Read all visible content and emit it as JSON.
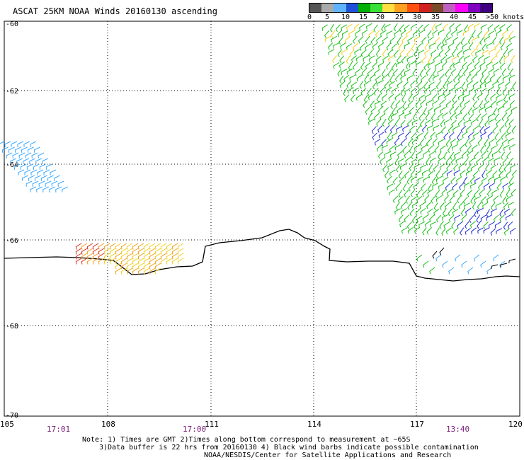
{
  "title": "ASCAT 25KM NOAA Winds 20160130 ascending",
  "colorbar": {
    "labels": [
      "0",
      "5",
      "10",
      "15",
      "20",
      "25",
      "30",
      "35",
      "40",
      "45",
      ">50 knots"
    ],
    "colors": [
      "#555555",
      "#aaaaaa",
      "#60b4ff",
      "#2050d8",
      "#00b000",
      "#38e038",
      "#ffe040",
      "#ffa020",
      "#ff5010",
      "#d02020",
      "#7a4a2a",
      "#c060c0",
      "#ff00ff",
      "#8000c0",
      "#400080"
    ]
  },
  "axes": {
    "lat_labels": [
      "-60",
      "-62",
      "-64",
      "-66",
      "-68",
      "-70"
    ],
    "lon_labels": [
      "105",
      "108",
      "111",
      "114",
      "117",
      "120"
    ],
    "time_labels": [
      "17:01",
      "17:00",
      "13:40"
    ]
  },
  "wind_colors": {
    "light_blue": "#3aa8ff",
    "dark_blue": "#1f2bd0",
    "green": "#16c016",
    "yellow": "#f0d020",
    "orange": "#f0a020",
    "red": "#e03020",
    "black": "#000000"
  },
  "notes": {
    "line1": "Note: 1) Times are GMT 2)Times along bottom correspond to measurement at ~65S",
    "line2": "3)Data buffer is 22 hrs from 20160130 4) Black wind barbs indicate possible contamination",
    "line3": "NOAA/NESDIS/Center for Satellite Applications and Research"
  }
}
